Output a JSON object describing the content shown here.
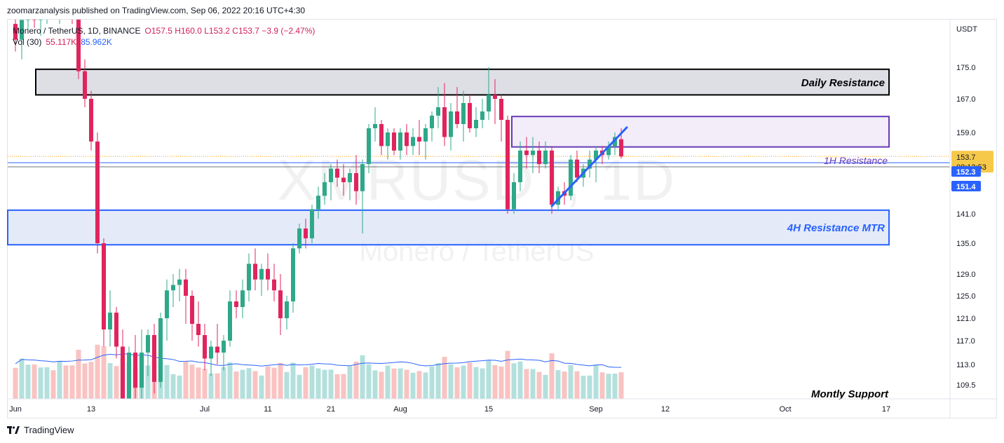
{
  "publisher_line": "zoomarzanalysis published on TradingView.com, Sep 06, 2022 20:16 UTC+4:30",
  "brand": "TradingView",
  "legend": {
    "symbol": "Monero / TetherUS, 1D, BINANCE",
    "ohlc": "O157.5  H160.0  L153.2  C153.7  −3.9 (−2.47%)",
    "vol_label": "Vol (30)",
    "vol_value_1": "55.117K",
    "vol_value_2": "85.962K"
  },
  "watermark": {
    "symbol": "XMRUSDT, 1D",
    "name": "Monero / TetherUS"
  },
  "colors": {
    "up": "#26a69a",
    "down": "#ef5350",
    "candle_up": "#2ea889",
    "candle_down": "#e0245e",
    "blue": "#2962ff",
    "purple": "#673ab7"
  },
  "chart_data": {
    "type": "candlestick",
    "currency": "USDT",
    "y_ticks": [
      175.0,
      167.0,
      159.0,
      141.0,
      135.0,
      129.0,
      125.0,
      121.0,
      117.0,
      113.0,
      109.5
    ],
    "x_ticks": [
      {
        "label": "Jun",
        "day": 0
      },
      {
        "label": "13",
        "day": 12
      },
      {
        "label": "Jul",
        "day": 30
      },
      {
        "label": "11",
        "day": 40
      },
      {
        "label": "21",
        "day": 50
      },
      {
        "label": "Aug",
        "day": 61
      },
      {
        "label": "15",
        "day": 75
      },
      {
        "label": "Sep",
        "day": 92
      },
      {
        "label": "12",
        "day": 103
      },
      {
        "label": "Oct",
        "day": 122
      },
      {
        "label": "17",
        "day": 138
      }
    ],
    "last_price": {
      "value": "153.7",
      "countdown": "08:13:53"
    },
    "price_tags": [
      "152.3",
      "151.4"
    ],
    "zones": [
      {
        "label": "Daily Resistance",
        "low": 168.0,
        "high": 174.5,
        "start_day": 3
      },
      {
        "label": "1H Resistance",
        "low": 155.8,
        "high": 162.8,
        "start_day": 79
      },
      {
        "label": "4H Resistance MTR",
        "low": 134.7,
        "high": 141.8,
        "start_day": 0
      },
      {
        "label": "Montly Support",
        "low": 0,
        "high": 0,
        "start_day": 0
      }
    ],
    "trendline": {
      "from": {
        "day": 85,
        "price": 142.7
      },
      "to": {
        "day": 96,
        "price": 160.2
      }
    },
    "candles": [
      {
        "d": 0,
        "o": 186,
        "h": 190,
        "l": 179,
        "c": 182
      },
      {
        "d": 1,
        "o": 182,
        "h": 189,
        "l": 177,
        "c": 187
      },
      {
        "d": 2,
        "o": 187,
        "h": 193,
        "l": 184,
        "c": 190
      },
      {
        "d": 3,
        "o": 190,
        "h": 195,
        "l": 185,
        "c": 187
      },
      {
        "d": 4,
        "o": 187,
        "h": 192,
        "l": 183,
        "c": 190
      },
      {
        "d": 5,
        "o": 190,
        "h": 196,
        "l": 186,
        "c": 193
      },
      {
        "d": 6,
        "o": 193,
        "h": 197,
        "l": 188,
        "c": 190
      },
      {
        "d": 7,
        "o": 190,
        "h": 196,
        "l": 186,
        "c": 194
      },
      {
        "d": 8,
        "o": 194,
        "h": 197,
        "l": 189,
        "c": 192
      },
      {
        "d": 9,
        "o": 192,
        "h": 195,
        "l": 186,
        "c": 189
      },
      {
        "d": 10,
        "o": 189,
        "h": 192,
        "l": 172,
        "c": 174
      },
      {
        "d": 11,
        "o": 174,
        "h": 177,
        "l": 165,
        "c": 167
      },
      {
        "d": 12,
        "o": 167,
        "h": 169,
        "l": 155,
        "c": 157
      },
      {
        "d": 13,
        "o": 157,
        "h": 159,
        "l": 133,
        "c": 135
      },
      {
        "d": 14,
        "o": 135,
        "h": 136,
        "l": 116,
        "c": 119
      },
      {
        "d": 15,
        "o": 119,
        "h": 126,
        "l": 116,
        "c": 122
      },
      {
        "d": 16,
        "o": 122,
        "h": 123,
        "l": 114,
        "c": 116
      },
      {
        "d": 17,
        "o": 116,
        "h": 119,
        "l": 104,
        "c": 106
      },
      {
        "d": 18,
        "o": 106,
        "h": 116,
        "l": 103,
        "c": 115
      },
      {
        "d": 19,
        "o": 115,
        "h": 118,
        "l": 107,
        "c": 109
      },
      {
        "d": 20,
        "o": 109,
        "h": 119,
        "l": 106,
        "c": 115
      },
      {
        "d": 21,
        "o": 115,
        "h": 119,
        "l": 111,
        "c": 118
      },
      {
        "d": 22,
        "o": 118,
        "h": 120,
        "l": 108,
        "c": 110
      },
      {
        "d": 23,
        "o": 110,
        "h": 122,
        "l": 109,
        "c": 121
      },
      {
        "d": 24,
        "o": 121,
        "h": 128,
        "l": 117,
        "c": 126
      },
      {
        "d": 25,
        "o": 126,
        "h": 129,
        "l": 123,
        "c": 127
      },
      {
        "d": 26,
        "o": 127,
        "h": 130,
        "l": 124,
        "c": 128
      },
      {
        "d": 27,
        "o": 128,
        "h": 130,
        "l": 120,
        "c": 125
      },
      {
        "d": 28,
        "o": 125,
        "h": 126,
        "l": 117,
        "c": 120
      },
      {
        "d": 29,
        "o": 120,
        "h": 124,
        "l": 116,
        "c": 118
      },
      {
        "d": 30,
        "o": 118,
        "h": 120,
        "l": 112,
        "c": 114
      },
      {
        "d": 31,
        "o": 114,
        "h": 117,
        "l": 111,
        "c": 116
      },
      {
        "d": 32,
        "o": 116,
        "h": 120,
        "l": 113,
        "c": 115
      },
      {
        "d": 33,
        "o": 115,
        "h": 118,
        "l": 112,
        "c": 117
      },
      {
        "d": 34,
        "o": 117,
        "h": 126,
        "l": 116,
        "c": 124
      },
      {
        "d": 35,
        "o": 124,
        "h": 126,
        "l": 121,
        "c": 123
      },
      {
        "d": 36,
        "o": 123,
        "h": 128,
        "l": 121,
        "c": 126
      },
      {
        "d": 37,
        "o": 126,
        "h": 133,
        "l": 124,
        "c": 131
      },
      {
        "d": 38,
        "o": 131,
        "h": 134,
        "l": 126,
        "c": 128
      },
      {
        "d": 39,
        "o": 128,
        "h": 131,
        "l": 125,
        "c": 130
      },
      {
        "d": 40,
        "o": 130,
        "h": 133,
        "l": 126,
        "c": 128
      },
      {
        "d": 41,
        "o": 128,
        "h": 131,
        "l": 124,
        "c": 126
      },
      {
        "d": 42,
        "o": 126,
        "h": 129,
        "l": 118,
        "c": 121
      },
      {
        "d": 43,
        "o": 121,
        "h": 125,
        "l": 119,
        "c": 124
      },
      {
        "d": 44,
        "o": 124,
        "h": 135,
        "l": 122,
        "c": 134
      },
      {
        "d": 45,
        "o": 134,
        "h": 139,
        "l": 133,
        "c": 138
      },
      {
        "d": 46,
        "o": 138,
        "h": 140,
        "l": 134,
        "c": 136
      },
      {
        "d": 47,
        "o": 136,
        "h": 143,
        "l": 135,
        "c": 142
      },
      {
        "d": 48,
        "o": 142,
        "h": 147,
        "l": 140,
        "c": 145
      },
      {
        "d": 49,
        "o": 145,
        "h": 150,
        "l": 143,
        "c": 148
      },
      {
        "d": 50,
        "o": 148,
        "h": 152,
        "l": 144,
        "c": 151
      },
      {
        "d": 51,
        "o": 151,
        "h": 153,
        "l": 147,
        "c": 149
      },
      {
        "d": 52,
        "o": 149,
        "h": 152,
        "l": 145,
        "c": 148
      },
      {
        "d": 53,
        "o": 148,
        "h": 151,
        "l": 144,
        "c": 150
      },
      {
        "d": 54,
        "o": 150,
        "h": 154,
        "l": 143,
        "c": 146
      },
      {
        "d": 55,
        "o": 146,
        "h": 153,
        "l": 137,
        "c": 152
      },
      {
        "d": 56,
        "o": 152,
        "h": 161,
        "l": 150,
        "c": 160
      },
      {
        "d": 57,
        "o": 160,
        "h": 165,
        "l": 157,
        "c": 161
      },
      {
        "d": 58,
        "o": 161,
        "h": 162,
        "l": 154,
        "c": 156
      },
      {
        "d": 59,
        "o": 156,
        "h": 160,
        "l": 153,
        "c": 159
      },
      {
        "d": 60,
        "o": 159,
        "h": 160,
        "l": 154,
        "c": 155
      },
      {
        "d": 61,
        "o": 155,
        "h": 160,
        "l": 153,
        "c": 159
      },
      {
        "d": 62,
        "o": 159,
        "h": 161,
        "l": 154,
        "c": 156
      },
      {
        "d": 63,
        "o": 156,
        "h": 160,
        "l": 154,
        "c": 158
      },
      {
        "d": 64,
        "o": 158,
        "h": 162,
        "l": 154,
        "c": 157
      },
      {
        "d": 65,
        "o": 157,
        "h": 161,
        "l": 153,
        "c": 160
      },
      {
        "d": 66,
        "o": 160,
        "h": 164,
        "l": 157,
        "c": 163
      },
      {
        "d": 67,
        "o": 163,
        "h": 170,
        "l": 160,
        "c": 165
      },
      {
        "d": 68,
        "o": 165,
        "h": 171,
        "l": 156,
        "c": 158
      },
      {
        "d": 69,
        "o": 158,
        "h": 166,
        "l": 155,
        "c": 164
      },
      {
        "d": 70,
        "o": 164,
        "h": 170,
        "l": 160,
        "c": 161
      },
      {
        "d": 71,
        "o": 161,
        "h": 169,
        "l": 157,
        "c": 166
      },
      {
        "d": 72,
        "o": 166,
        "h": 168,
        "l": 159,
        "c": 160
      },
      {
        "d": 73,
        "o": 160,
        "h": 165,
        "l": 158,
        "c": 162
      },
      {
        "d": 74,
        "o": 162,
        "h": 167,
        "l": 160,
        "c": 164
      },
      {
        "d": 75,
        "o": 164,
        "h": 175,
        "l": 162,
        "c": 168
      },
      {
        "d": 76,
        "o": 168,
        "h": 172,
        "l": 161,
        "c": 167
      },
      {
        "d": 77,
        "o": 167,
        "h": 168,
        "l": 157,
        "c": 162
      },
      {
        "d": 78,
        "o": 162,
        "h": 163,
        "l": 141,
        "c": 142
      },
      {
        "d": 79,
        "o": 142,
        "h": 150,
        "l": 141,
        "c": 148
      },
      {
        "d": 80,
        "o": 148,
        "h": 157,
        "l": 146,
        "c": 155
      },
      {
        "d": 81,
        "o": 155,
        "h": 158,
        "l": 151,
        "c": 154
      },
      {
        "d": 82,
        "o": 154,
        "h": 158,
        "l": 150,
        "c": 155
      },
      {
        "d": 83,
        "o": 155,
        "h": 157,
        "l": 150,
        "c": 152
      },
      {
        "d": 84,
        "o": 152,
        "h": 157,
        "l": 151,
        "c": 155
      },
      {
        "d": 85,
        "o": 155,
        "h": 156,
        "l": 141,
        "c": 143
      },
      {
        "d": 86,
        "o": 143,
        "h": 147,
        "l": 142,
        "c": 146
      },
      {
        "d": 87,
        "o": 146,
        "h": 148,
        "l": 143,
        "c": 145
      },
      {
        "d": 88,
        "o": 145,
        "h": 154,
        "l": 144,
        "c": 153
      },
      {
        "d": 89,
        "o": 153,
        "h": 155,
        "l": 148,
        "c": 149
      },
      {
        "d": 90,
        "o": 149,
        "h": 152,
        "l": 147,
        "c": 151
      },
      {
        "d": 91,
        "o": 151,
        "h": 155,
        "l": 149,
        "c": 153
      },
      {
        "d": 92,
        "o": 153,
        "h": 156,
        "l": 148,
        "c": 155
      },
      {
        "d": 93,
        "o": 155,
        "h": 156,
        "l": 152,
        "c": 154
      },
      {
        "d": 94,
        "o": 154,
        "h": 157,
        "l": 153,
        "c": 156
      },
      {
        "d": 95,
        "o": 156,
        "h": 159,
        "l": 154,
        "c": 158
      },
      {
        "d": 96,
        "o": 157.5,
        "h": 160,
        "l": 153.2,
        "c": 153.7
      }
    ],
    "volume_ma_label": "Vol (30)"
  }
}
